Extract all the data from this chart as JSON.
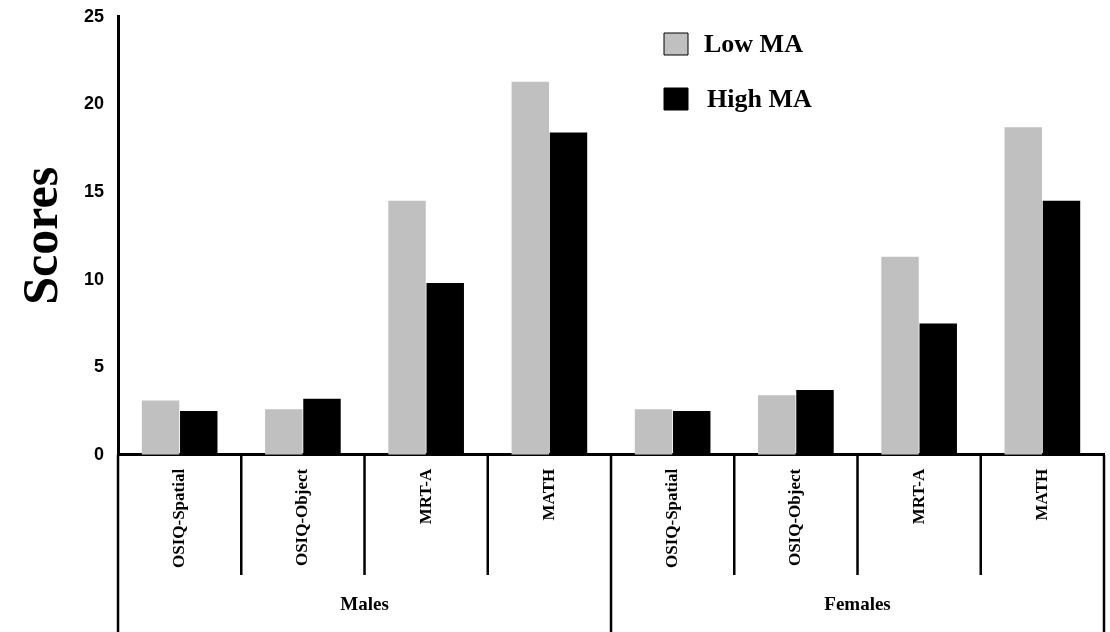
{
  "chart_data": {
    "type": "bar",
    "ylabel": "Scores",
    "categories": [
      "OSIQ-Spatial",
      "OSIQ-Object",
      "MRT-A",
      "MATH",
      "OSIQ-Spatial",
      "OSIQ-Object",
      "MRT-A",
      "MATH"
    ],
    "series": [
      {
        "name": "Low MA",
        "color": "#c0c0c0",
        "values": [
          3.1,
          2.6,
          14.5,
          21.3,
          2.6,
          3.4,
          11.3,
          18.7
        ]
      },
      {
        "name": "High MA",
        "color": "#000000",
        "values": [
          2.5,
          3.2,
          9.8,
          18.4,
          2.5,
          3.7,
          7.5,
          14.5
        ]
      }
    ],
    "ylim": [
      0,
      25
    ],
    "yticks": [
      0,
      5,
      10,
      15,
      20,
      25
    ],
    "grid": false,
    "legend": "top right",
    "annotations": [
      "Males",
      "Females"
    ]
  }
}
